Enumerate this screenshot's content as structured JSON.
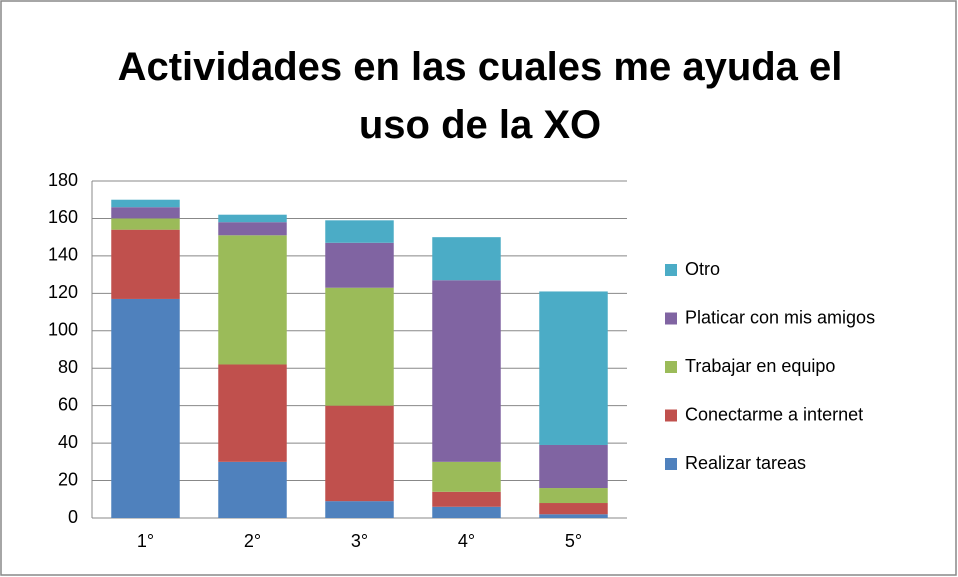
{
  "chart_data": {
    "type": "stacked_bar",
    "title": "Actividades en las cuales me ayuda el uso de la XO",
    "categories": [
      "1°",
      "2°",
      "3°",
      "4°",
      "5°"
    ],
    "series": [
      {
        "name": "Realizar tareas",
        "color": "#4f81bd",
        "values": [
          117,
          30,
          9,
          6,
          2
        ]
      },
      {
        "name": "Conectarme a internet",
        "color": "#c0504d",
        "values": [
          37,
          52,
          51,
          8,
          6
        ]
      },
      {
        "name": "Trabajar en equipo",
        "color": "#9bbb59",
        "values": [
          6,
          69,
          63,
          16,
          8
        ]
      },
      {
        "name": "Platicar con mis amigos",
        "color": "#8064a2",
        "values": [
          6,
          7,
          24,
          97,
          23
        ]
      },
      {
        "name": "Otro",
        "color": "#4bacc6",
        "values": [
          4,
          4,
          12,
          23,
          82
        ]
      }
    ],
    "ylim": [
      0,
      180
    ],
    "yticks": [
      0,
      20,
      40,
      60,
      80,
      100,
      120,
      140,
      160,
      180
    ],
    "grid": true,
    "legend": "right"
  }
}
